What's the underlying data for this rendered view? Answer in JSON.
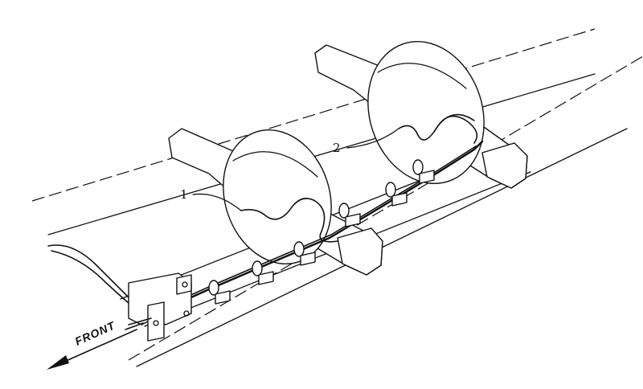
{
  "figure": {
    "callouts": [
      {
        "id": "1",
        "label": "1"
      },
      {
        "id": "2",
        "label": "2"
      }
    ],
    "direction_label": "FRONT"
  }
}
